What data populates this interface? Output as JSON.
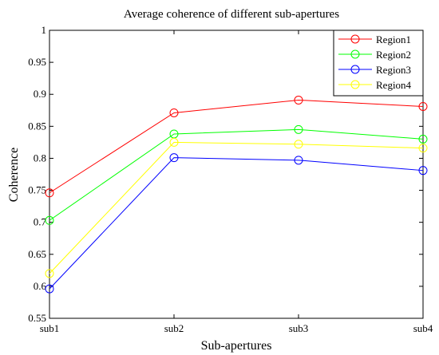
{
  "chart_data": {
    "type": "line",
    "title": "Average coherence of different sub-apertures",
    "xlabel": "Sub-apertures",
    "ylabel": "Coherence",
    "categories": [
      "sub1",
      "sub2",
      "sub3",
      "sub4"
    ],
    "ylim": [
      0.55,
      1
    ],
    "yticks": [
      "0.55",
      "0.6",
      "0.65",
      "0.7",
      "0.75",
      "0.8",
      "0.85",
      "0.9",
      "0.95",
      "1"
    ],
    "grid": false,
    "legend_position": "top-right",
    "marker": "circle",
    "series": [
      {
        "name": "Region1",
        "color": "#ff0000",
        "values": [
          0.746,
          0.871,
          0.891,
          0.881
        ]
      },
      {
        "name": "Region2",
        "color": "#00ff00",
        "values": [
          0.703,
          0.838,
          0.845,
          0.83
        ]
      },
      {
        "name": "Region3",
        "color": "#0000ff",
        "values": [
          0.596,
          0.801,
          0.797,
          0.781
        ]
      },
      {
        "name": "Region4",
        "color": "#ffff00",
        "values": [
          0.62,
          0.825,
          0.822,
          0.816
        ]
      }
    ]
  }
}
